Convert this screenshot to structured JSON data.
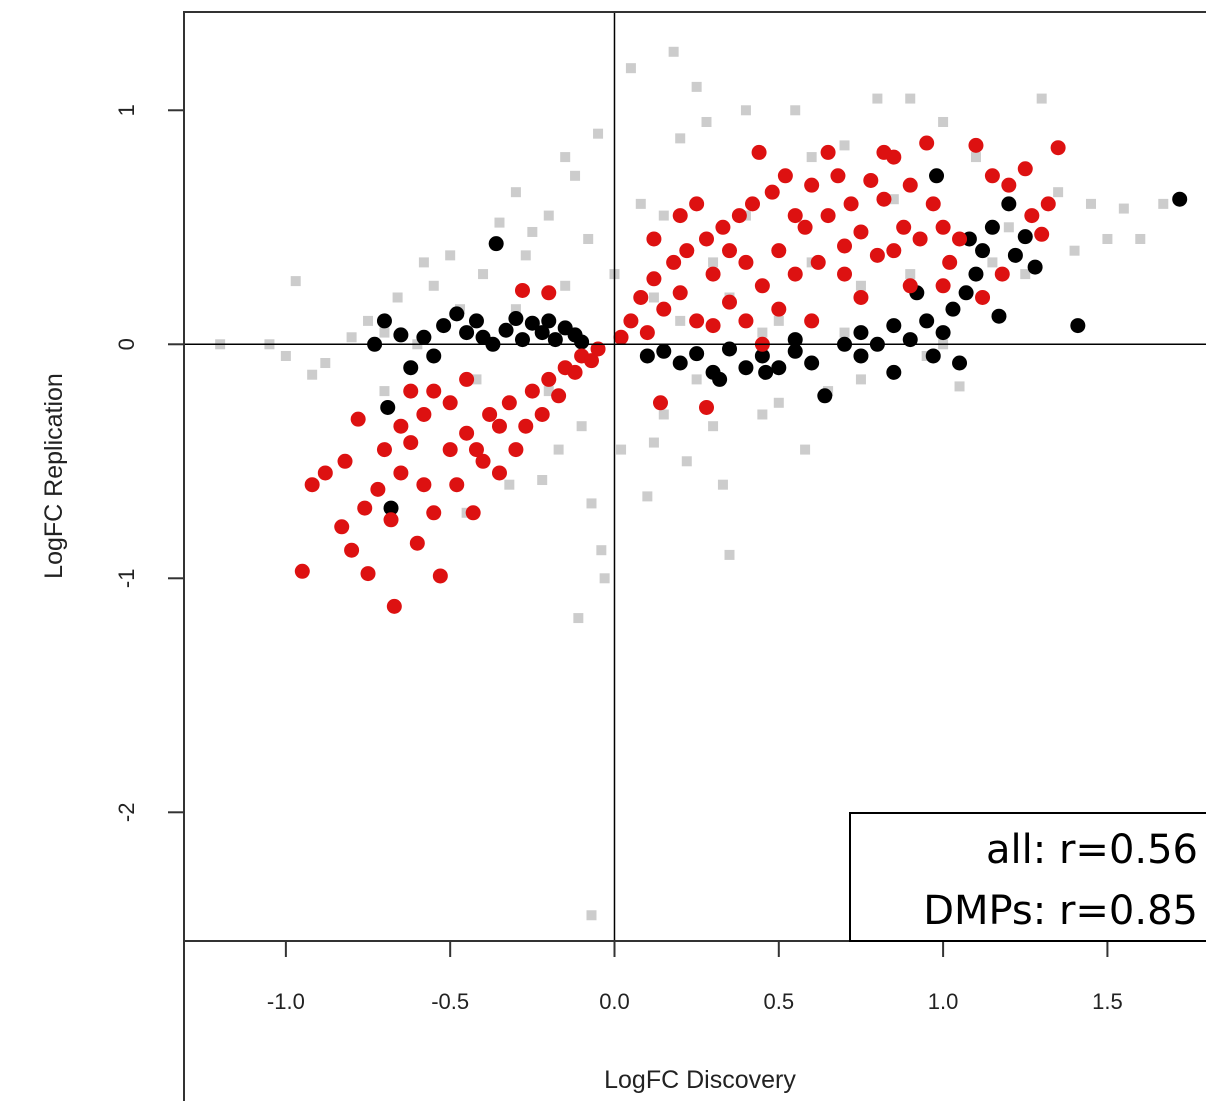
{
  "chart_data": {
    "type": "scatter",
    "xlabel": "LogFC Discovery",
    "ylabel": "LogFC Replication",
    "xlim": [
      -1.31,
      1.8
    ],
    "ylim": [
      -2.55,
      1.42
    ],
    "x_ticks": [
      -1.0,
      -0.5,
      0.0,
      0.5,
      1.0,
      1.5
    ],
    "x_tick_labels": [
      "-1.0",
      "-0.5",
      "0.0",
      "0.5",
      "1.0",
      "1.5"
    ],
    "y_ticks": [
      1,
      0,
      -1,
      -2
    ],
    "y_tick_labels": [
      "1",
      "0",
      "-1",
      "-2"
    ],
    "reference_lines": {
      "x": 0,
      "y": 0
    },
    "grid": false,
    "legend": {
      "placement": "bottom-right",
      "lines": [
        "all: r=0.56",
        "DMPs: r=0.85"
      ]
    },
    "colors": {
      "all": "#cccccc",
      "nonsig": "#000000",
      "dmp": "#dd1111"
    },
    "series": [
      {
        "color": "#cccccc",
        "marker": "square",
        "points": [
          [
            -1.2,
            0.0
          ],
          [
            -1.05,
            0.0
          ],
          [
            -1.0,
            -0.05
          ],
          [
            -0.97,
            0.27
          ],
          [
            -0.92,
            -0.13
          ],
          [
            -0.88,
            -0.08
          ],
          [
            -0.8,
            0.03
          ],
          [
            -0.75,
            0.1
          ],
          [
            -0.7,
            0.05
          ],
          [
            -0.66,
            0.2
          ],
          [
            -0.58,
            0.35
          ],
          [
            -0.55,
            0.25
          ],
          [
            -0.5,
            0.38
          ],
          [
            -0.47,
            0.15
          ],
          [
            -0.45,
            -0.72
          ],
          [
            -0.4,
            0.3
          ],
          [
            -0.35,
            0.52
          ],
          [
            -0.32,
            -0.6
          ],
          [
            -0.3,
            0.65
          ],
          [
            -0.27,
            0.38
          ],
          [
            -0.25,
            0.48
          ],
          [
            -0.22,
            -0.58
          ],
          [
            -0.2,
            0.55
          ],
          [
            -0.17,
            -0.45
          ],
          [
            -0.15,
            0.8
          ],
          [
            -0.12,
            0.72
          ],
          [
            -0.1,
            -0.35
          ],
          [
            -0.08,
            0.45
          ],
          [
            -0.07,
            -0.68
          ],
          [
            -0.05,
            0.9
          ],
          [
            -0.04,
            -0.88
          ],
          [
            -0.03,
            -1.0
          ],
          [
            0.0,
            0.3
          ],
          [
            0.02,
            -0.45
          ],
          [
            0.05,
            1.18
          ],
          [
            0.08,
            0.6
          ],
          [
            0.1,
            -0.65
          ],
          [
            0.12,
            -0.42
          ],
          [
            0.15,
            -0.3
          ],
          [
            0.18,
            1.25
          ],
          [
            0.2,
            0.88
          ],
          [
            0.22,
            -0.5
          ],
          [
            0.25,
            1.1
          ],
          [
            0.28,
            0.95
          ],
          [
            0.3,
            -0.35
          ],
          [
            0.33,
            -0.6
          ],
          [
            0.35,
            -0.9
          ],
          [
            0.4,
            1.0
          ],
          [
            0.45,
            -0.3
          ],
          [
            0.5,
            -0.25
          ],
          [
            0.55,
            1.0
          ],
          [
            0.58,
            -0.45
          ],
          [
            0.6,
            0.8
          ],
          [
            0.65,
            -0.2
          ],
          [
            0.7,
            0.85
          ],
          [
            0.75,
            -0.15
          ],
          [
            0.8,
            1.05
          ],
          [
            0.85,
            0.62
          ],
          [
            0.9,
            1.05
          ],
          [
            0.95,
            -0.05
          ],
          [
            1.0,
            0.95
          ],
          [
            1.05,
            -0.18
          ],
          [
            1.1,
            0.8
          ],
          [
            1.15,
            0.35
          ],
          [
            1.2,
            0.5
          ],
          [
            1.25,
            0.3
          ],
          [
            1.3,
            1.05
          ],
          [
            1.35,
            0.65
          ],
          [
            1.4,
            0.4
          ],
          [
            1.45,
            0.6
          ],
          [
            1.5,
            0.45
          ],
          [
            1.55,
            0.58
          ],
          [
            1.6,
            0.45
          ],
          [
            1.67,
            0.6
          ],
          [
            -0.11,
            -1.17
          ],
          [
            -0.07,
            -2.44
          ],
          [
            0.12,
            0.2
          ],
          [
            -0.2,
            -0.2
          ],
          [
            0.35,
            0.2
          ],
          [
            0.6,
            0.35
          ],
          [
            -0.42,
            -0.15
          ],
          [
            0.15,
            0.55
          ],
          [
            0.4,
            0.55
          ],
          [
            0.75,
            0.25
          ],
          [
            -0.6,
            0.0
          ],
          [
            -0.3,
            0.15
          ],
          [
            0.25,
            -0.15
          ],
          [
            0.5,
            0.1
          ],
          [
            0.9,
            0.3
          ],
          [
            -0.7,
            -0.2
          ],
          [
            0.45,
            0.05
          ],
          [
            0.7,
            0.05
          ],
          [
            1.0,
            0.0
          ],
          [
            0.2,
            0.1
          ],
          [
            -0.15,
            0.25
          ],
          [
            0.3,
            0.35
          ]
        ]
      },
      {
        "color": "#000000",
        "marker": "circle",
        "points": [
          [
            -0.36,
            0.43
          ],
          [
            -0.69,
            -0.27
          ],
          [
            -0.73,
            0.0
          ],
          [
            -0.7,
            0.1
          ],
          [
            -0.65,
            0.04
          ],
          [
            -0.62,
            -0.1
          ],
          [
            -0.58,
            0.03
          ],
          [
            -0.55,
            -0.05
          ],
          [
            -0.52,
            0.08
          ],
          [
            -0.48,
            0.13
          ],
          [
            -0.45,
            0.05
          ],
          [
            -0.42,
            0.1
          ],
          [
            -0.4,
            0.03
          ],
          [
            -0.37,
            0.0
          ],
          [
            -0.33,
            0.06
          ],
          [
            -0.3,
            0.11
          ],
          [
            -0.28,
            0.02
          ],
          [
            -0.25,
            0.09
          ],
          [
            -0.22,
            0.05
          ],
          [
            -0.2,
            0.1
          ],
          [
            -0.18,
            0.02
          ],
          [
            -0.15,
            0.07
          ],
          [
            -0.12,
            0.04
          ],
          [
            -0.1,
            0.01
          ],
          [
            -0.68,
            -0.7
          ],
          [
            0.1,
            -0.05
          ],
          [
            0.15,
            -0.03
          ],
          [
            0.2,
            -0.08
          ],
          [
            0.25,
            -0.04
          ],
          [
            0.3,
            -0.12
          ],
          [
            0.35,
            -0.02
          ],
          [
            0.4,
            -0.1
          ],
          [
            0.45,
            -0.05
          ],
          [
            0.5,
            -0.1
          ],
          [
            0.55,
            -0.03
          ],
          [
            0.6,
            -0.08
          ],
          [
            0.64,
            -0.22
          ],
          [
            0.7,
            0.0
          ],
          [
            0.75,
            0.05
          ],
          [
            0.8,
            0.0
          ],
          [
            0.85,
            0.08
          ],
          [
            0.9,
            0.02
          ],
          [
            0.95,
            0.1
          ],
          [
            1.0,
            0.05
          ],
          [
            1.03,
            0.15
          ],
          [
            1.07,
            0.22
          ],
          [
            1.1,
            0.3
          ],
          [
            1.12,
            0.4
          ],
          [
            1.15,
            0.5
          ],
          [
            1.2,
            0.6
          ],
          [
            1.22,
            0.38
          ],
          [
            1.25,
            0.46
          ],
          [
            1.28,
            0.33
          ],
          [
            1.17,
            0.12
          ],
          [
            1.05,
            -0.08
          ],
          [
            0.97,
            -0.05
          ],
          [
            0.85,
            -0.12
          ],
          [
            0.98,
            0.72
          ],
          [
            1.41,
            0.08
          ],
          [
            1.72,
            0.62
          ],
          [
            0.32,
            -0.15
          ],
          [
            0.55,
            0.02
          ],
          [
            0.75,
            -0.05
          ],
          [
            0.92,
            0.22
          ],
          [
            1.08,
            0.45
          ],
          [
            0.46,
            -0.12
          ]
        ]
      },
      {
        "color": "#dd1111",
        "marker": "circle",
        "points": [
          [
            -0.95,
            -0.97
          ],
          [
            -0.92,
            -0.6
          ],
          [
            -0.88,
            -0.55
          ],
          [
            -0.83,
            -0.78
          ],
          [
            -0.82,
            -0.5
          ],
          [
            -0.8,
            -0.88
          ],
          [
            -0.78,
            -0.32
          ],
          [
            -0.76,
            -0.7
          ],
          [
            -0.75,
            -0.98
          ],
          [
            -0.72,
            -0.62
          ],
          [
            -0.7,
            -0.45
          ],
          [
            -0.68,
            -0.75
          ],
          [
            -0.67,
            -1.12
          ],
          [
            -0.65,
            -0.55
          ],
          [
            -0.62,
            -0.42
          ],
          [
            -0.6,
            -0.85
          ],
          [
            -0.58,
            -0.3
          ],
          [
            -0.55,
            -0.72
          ],
          [
            -0.53,
            -0.99
          ],
          [
            -0.5,
            -0.45
          ],
          [
            -0.48,
            -0.6
          ],
          [
            -0.45,
            -0.38
          ],
          [
            -0.43,
            -0.72
          ],
          [
            -0.4,
            -0.5
          ],
          [
            -0.38,
            -0.3
          ],
          [
            -0.35,
            -0.55
          ],
          [
            -0.32,
            -0.25
          ],
          [
            -0.3,
            -0.45
          ],
          [
            -0.27,
            -0.35
          ],
          [
            -0.25,
            -0.2
          ],
          [
            -0.22,
            -0.3
          ],
          [
            -0.2,
            -0.15
          ],
          [
            -0.17,
            -0.22
          ],
          [
            -0.15,
            -0.1
          ],
          [
            -0.12,
            -0.12
          ],
          [
            -0.1,
            -0.05
          ],
          [
            -0.07,
            -0.07
          ],
          [
            -0.05,
            -0.02
          ],
          [
            -0.28,
            0.23
          ],
          [
            -0.2,
            0.22
          ],
          [
            -0.62,
            -0.2
          ],
          [
            -0.55,
            -0.2
          ],
          [
            -0.45,
            -0.15
          ],
          [
            -0.65,
            -0.35
          ],
          [
            -0.5,
            -0.25
          ],
          [
            -0.42,
            -0.45
          ],
          [
            -0.58,
            -0.6
          ],
          [
            -0.35,
            -0.35
          ],
          [
            0.02,
            0.03
          ],
          [
            0.05,
            0.1
          ],
          [
            0.08,
            0.2
          ],
          [
            0.1,
            0.05
          ],
          [
            0.12,
            0.28
          ],
          [
            0.15,
            0.15
          ],
          [
            0.18,
            0.35
          ],
          [
            0.2,
            0.22
          ],
          [
            0.22,
            0.4
          ],
          [
            0.25,
            0.1
          ],
          [
            0.28,
            0.45
          ],
          [
            0.3,
            0.3
          ],
          [
            0.33,
            0.5
          ],
          [
            0.35,
            0.18
          ],
          [
            0.38,
            0.55
          ],
          [
            0.4,
            0.35
          ],
          [
            0.42,
            0.6
          ],
          [
            0.45,
            0.25
          ],
          [
            0.48,
            0.65
          ],
          [
            0.5,
            0.4
          ],
          [
            0.52,
            0.72
          ],
          [
            0.55,
            0.3
          ],
          [
            0.58,
            0.5
          ],
          [
            0.6,
            0.68
          ],
          [
            0.62,
            0.35
          ],
          [
            0.65,
            0.55
          ],
          [
            0.68,
            0.72
          ],
          [
            0.7,
            0.42
          ],
          [
            0.72,
            0.6
          ],
          [
            0.75,
            0.48
          ],
          [
            0.78,
            0.7
          ],
          [
            0.8,
            0.38
          ],
          [
            0.82,
            0.62
          ],
          [
            0.85,
            0.8
          ],
          [
            0.88,
            0.5
          ],
          [
            0.9,
            0.68
          ],
          [
            0.93,
            0.45
          ],
          [
            0.95,
            0.86
          ],
          [
            0.97,
            0.6
          ],
          [
            1.0,
            0.5
          ],
          [
            1.02,
            0.35
          ],
          [
            1.05,
            0.45
          ],
          [
            0.44,
            0.82
          ],
          [
            0.65,
            0.82
          ],
          [
            0.82,
            0.82
          ],
          [
            1.1,
            0.85
          ],
          [
            1.15,
            0.72
          ],
          [
            1.2,
            0.68
          ],
          [
            1.25,
            0.75
          ],
          [
            1.27,
            0.55
          ],
          [
            1.3,
            0.47
          ],
          [
            1.35,
            0.84
          ],
          [
            1.32,
            0.6
          ],
          [
            1.18,
            0.3
          ],
          [
            1.12,
            0.2
          ],
          [
            0.14,
            -0.25
          ],
          [
            0.28,
            -0.27
          ],
          [
            0.45,
            0.0
          ],
          [
            0.6,
            0.1
          ],
          [
            0.75,
            0.2
          ],
          [
            0.9,
            0.25
          ],
          [
            0.2,
            0.55
          ],
          [
            0.35,
            0.4
          ],
          [
            0.55,
            0.55
          ],
          [
            0.3,
            0.08
          ],
          [
            0.5,
            0.15
          ],
          [
            0.12,
            0.45
          ],
          [
            0.4,
            0.1
          ],
          [
            0.7,
            0.3
          ],
          [
            0.85,
            0.4
          ],
          [
            1.0,
            0.25
          ],
          [
            0.25,
            0.6
          ]
        ]
      }
    ]
  }
}
